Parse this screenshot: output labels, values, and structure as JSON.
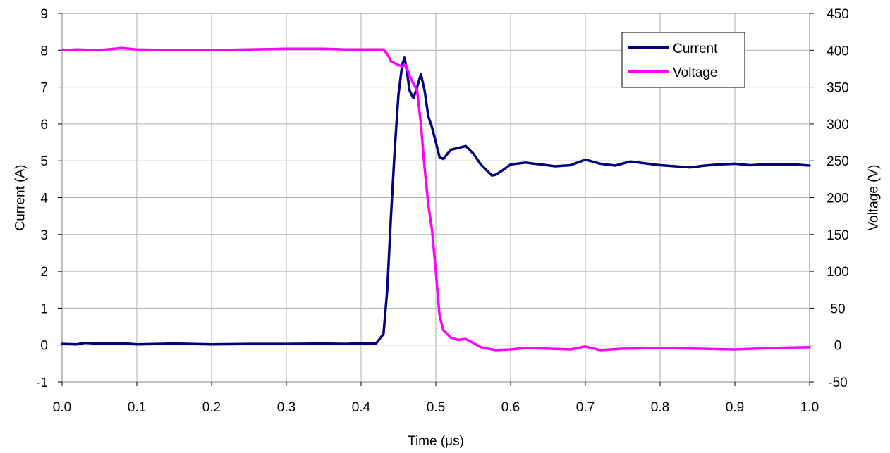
{
  "chart_data": {
    "type": "line",
    "title": "",
    "xlabel": "Time (μs)",
    "ylabel_left": "Current (A)",
    "ylabel_right": "Voltage (V)",
    "xlim": [
      0.0,
      1.0
    ],
    "ylim_left": [
      -1,
      9
    ],
    "ylim_right": [
      -50,
      450
    ],
    "x_ticks": [
      "0.0",
      "0.1",
      "0.2",
      "0.3",
      "0.4",
      "0.5",
      "0.6",
      "0.7",
      "0.8",
      "0.9",
      "1.0"
    ],
    "y_ticks_left": [
      "-1",
      "0",
      "1",
      "2",
      "3",
      "4",
      "5",
      "6",
      "7",
      "8",
      "9"
    ],
    "y_ticks_right": [
      "-50",
      "0",
      "50",
      "100",
      "150",
      "200",
      "250",
      "300",
      "350",
      "400",
      "450"
    ],
    "grid": true,
    "legend_position": "top-right",
    "series": [
      {
        "name": "Current",
        "axis": "left",
        "color": "#000080",
        "x": [
          0.0,
          0.02,
          0.03,
          0.05,
          0.08,
          0.1,
          0.15,
          0.2,
          0.25,
          0.3,
          0.35,
          0.38,
          0.4,
          0.42,
          0.43,
          0.435,
          0.44,
          0.445,
          0.45,
          0.455,
          0.458,
          0.46,
          0.465,
          0.47,
          0.475,
          0.48,
          0.485,
          0.49,
          0.495,
          0.5,
          0.505,
          0.51,
          0.52,
          0.53,
          0.54,
          0.55,
          0.56,
          0.57,
          0.575,
          0.58,
          0.59,
          0.6,
          0.62,
          0.64,
          0.66,
          0.68,
          0.7,
          0.72,
          0.74,
          0.76,
          0.78,
          0.8,
          0.82,
          0.84,
          0.86,
          0.88,
          0.9,
          0.92,
          0.94,
          0.96,
          0.98,
          1.0
        ],
        "y": [
          0.03,
          0.02,
          0.06,
          0.04,
          0.05,
          0.02,
          0.04,
          0.02,
          0.03,
          0.03,
          0.04,
          0.03,
          0.05,
          0.04,
          0.3,
          1.5,
          3.5,
          5.3,
          6.8,
          7.6,
          7.8,
          7.6,
          6.9,
          6.7,
          7.0,
          7.35,
          6.9,
          6.2,
          5.9,
          5.5,
          5.1,
          5.05,
          5.3,
          5.35,
          5.4,
          5.2,
          4.9,
          4.7,
          4.6,
          4.62,
          4.75,
          4.9,
          4.95,
          4.9,
          4.85,
          4.88,
          5.03,
          4.92,
          4.87,
          4.98,
          4.93,
          4.88,
          4.85,
          4.82,
          4.87,
          4.9,
          4.92,
          4.88,
          4.9,
          4.9,
          4.9,
          4.87
        ]
      },
      {
        "name": "Voltage",
        "axis": "right",
        "color": "#ff00ff",
        "x": [
          0.0,
          0.02,
          0.05,
          0.08,
          0.1,
          0.15,
          0.2,
          0.25,
          0.3,
          0.35,
          0.38,
          0.4,
          0.42,
          0.43,
          0.435,
          0.44,
          0.45,
          0.455,
          0.46,
          0.465,
          0.47,
          0.475,
          0.48,
          0.485,
          0.49,
          0.495,
          0.5,
          0.505,
          0.51,
          0.52,
          0.53,
          0.54,
          0.55,
          0.56,
          0.57,
          0.58,
          0.6,
          0.62,
          0.65,
          0.68,
          0.7,
          0.72,
          0.75,
          0.8,
          0.85,
          0.9,
          0.95,
          1.0
        ],
        "y": [
          400,
          401,
          400,
          403,
          401,
          400,
          400,
          401,
          402,
          402,
          401,
          401,
          401,
          401,
          395,
          385,
          380,
          378,
          380,
          365,
          355,
          345,
          300,
          240,
          190,
          155,
          100,
          40,
          20,
          10,
          7,
          8,
          3,
          -3,
          -5,
          -7,
          -6,
          -4,
          -5,
          -6,
          -2,
          -7,
          -5,
          -4,
          -5,
          -6,
          -4,
          -3
        ]
      }
    ]
  }
}
